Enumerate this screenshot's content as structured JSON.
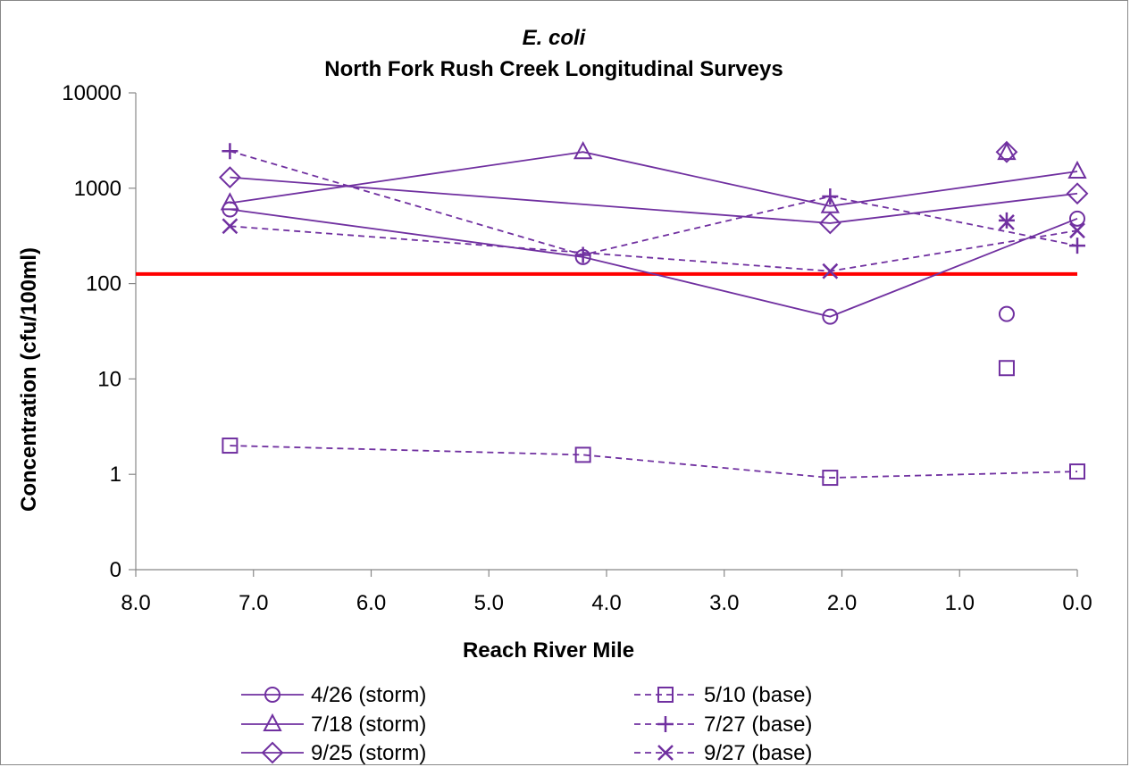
{
  "chart_data": {
    "type": "line",
    "title": "E. coli",
    "subtitle": "North Fork Rush Creek Longitudinal Surveys",
    "xlabel": "Reach River Mile",
    "ylabel": "Concentration (cfu/100ml)",
    "xlim": [
      8.0,
      0.0
    ],
    "x_reversed": true,
    "ylim": [
      0.1,
      10000
    ],
    "y_scale": "log",
    "x_ticks": [
      8.0,
      7.0,
      6.0,
      5.0,
      4.0,
      3.0,
      2.0,
      1.0,
      0.0
    ],
    "x_tick_labels": [
      "8.0",
      "7.0",
      "6.0",
      "5.0",
      "4.0",
      "3.0",
      "2.0",
      "1.0",
      "0.0"
    ],
    "y_ticks": [
      0.1,
      1,
      10,
      100,
      1000,
      10000
    ],
    "y_tick_labels": [
      "0",
      "1",
      "10",
      "100",
      "1000",
      "10000"
    ],
    "reference_line": {
      "y": 126,
      "color": "#ff0000"
    },
    "series_color": "#7030a0",
    "legend_position": "bottom",
    "series": [
      {
        "name": "4/26 (storm)",
        "marker": "circle",
        "line": "solid",
        "points": [
          [
            7.2,
            600
          ],
          [
            4.2,
            190
          ],
          [
            2.1,
            45
          ],
          [
            0.0,
            480
          ]
        ],
        "unconnected_points": [
          [
            0.6,
            48
          ]
        ]
      },
      {
        "name": "5/10 (base)",
        "marker": "square",
        "line": "dashed",
        "points": [
          [
            7.2,
            2.0
          ],
          [
            4.2,
            1.6
          ],
          [
            2.1,
            0.92
          ],
          [
            0.0,
            1.07
          ]
        ],
        "unconnected_points": [
          [
            0.6,
            13
          ]
        ]
      },
      {
        "name": "7/18 (storm)",
        "marker": "triangle",
        "line": "solid",
        "points": [
          [
            7.2,
            700
          ],
          [
            4.2,
            2400
          ],
          [
            2.1,
            650
          ],
          [
            0.0,
            1500
          ]
        ],
        "unconnected_points": [
          [
            0.6,
            2350
          ]
        ]
      },
      {
        "name": "7/27 (base)",
        "marker": "plus",
        "line": "dashed",
        "points": [
          [
            7.2,
            2450
          ],
          [
            4.2,
            200
          ],
          [
            2.1,
            820
          ],
          [
            0.0,
            250
          ]
        ],
        "unconnected_points": [
          [
            0.6,
            460
          ]
        ]
      },
      {
        "name": "9/25 (storm)",
        "marker": "diamond",
        "line": "solid",
        "points": [
          [
            7.2,
            1300
          ],
          [
            2.1,
            430
          ],
          [
            0.0,
            880
          ]
        ],
        "unconnected_points": [
          [
            0.6,
            2400
          ]
        ]
      },
      {
        "name": "9/27 (base)",
        "marker": "x",
        "line": "dashed",
        "points": [
          [
            7.2,
            400
          ],
          [
            2.1,
            135
          ],
          [
            0.0,
            360
          ]
        ],
        "unconnected_points": [
          [
            0.6,
            440
          ]
        ]
      }
    ]
  }
}
